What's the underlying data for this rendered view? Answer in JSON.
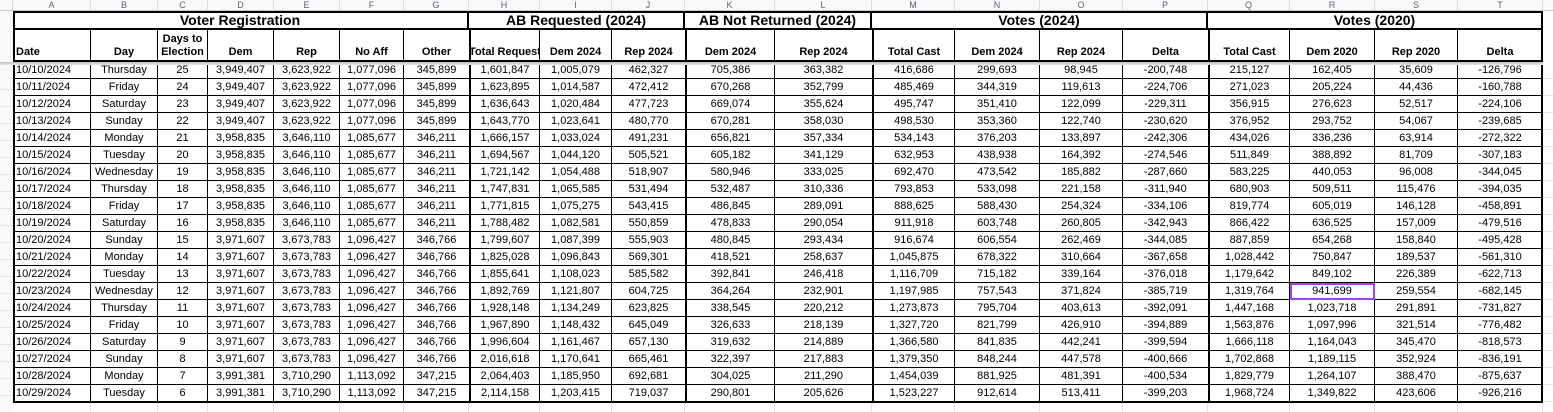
{
  "sheet": {
    "column_letters": [
      "A",
      "B",
      "C",
      "D",
      "E",
      "F",
      "G",
      "H",
      "I",
      "J",
      "K",
      "L",
      "M",
      "N",
      "O",
      "P",
      "Q",
      "R",
      "S",
      "T"
    ],
    "sections": [
      {
        "label": "Voter Registration",
        "cols": 7
      },
      {
        "label": "AB Requested (2024)",
        "cols": 3
      },
      {
        "label": "AB Not Returned (2024)",
        "cols": 2
      },
      {
        "label": "Votes (2024)",
        "cols": 4
      },
      {
        "label": "Votes (2020)",
        "cols": 4
      }
    ],
    "columns": [
      "Date",
      "Day",
      "Days to Election",
      "Dem",
      "Rep",
      "No Aff",
      "Other",
      "Total Request",
      "Dem 2024",
      "Rep 2024",
      "Dem 2024",
      "Rep 2024",
      "Total Cast",
      "Dem 2024",
      "Rep 2024",
      "Delta",
      "Total Cast",
      "Dem 2020",
      "Rep 2020",
      "Delta"
    ],
    "rows": [
      [
        "10/10/2024",
        "Thursday",
        "25",
        "3,949,407",
        "3,623,922",
        "1,077,096",
        "345,899",
        "1,601,847",
        "1,005,079",
        "462,327",
        "705,386",
        "363,382",
        "416,686",
        "299,693",
        "98,945",
        "-200,748",
        "215,127",
        "162,405",
        "35,609",
        "-126,796"
      ],
      [
        "10/11/2024",
        "Friday",
        "24",
        "3,949,407",
        "3,623,922",
        "1,077,096",
        "345,899",
        "1,623,895",
        "1,014,587",
        "472,412",
        "670,268",
        "352,799",
        "485,469",
        "344,319",
        "119,613",
        "-224,706",
        "271,023",
        "205,224",
        "44,436",
        "-160,788"
      ],
      [
        "10/12/2024",
        "Saturday",
        "23",
        "3,949,407",
        "3,623,922",
        "1,077,096",
        "345,899",
        "1,636,643",
        "1,020,484",
        "477,723",
        "669,074",
        "355,624",
        "495,747",
        "351,410",
        "122,099",
        "-229,311",
        "356,915",
        "276,623",
        "52,517",
        "-224,106"
      ],
      [
        "10/13/2024",
        "Sunday",
        "22",
        "3,949,407",
        "3,623,922",
        "1,077,096",
        "345,899",
        "1,643,770",
        "1,023,641",
        "480,770",
        "670,281",
        "358,030",
        "498,530",
        "353,360",
        "122,740",
        "-230,620",
        "376,952",
        "293,752",
        "54,067",
        "-239,685"
      ],
      [
        "10/14/2024",
        "Monday",
        "21",
        "3,958,835",
        "3,646,110",
        "1,085,677",
        "346,211",
        "1,666,157",
        "1,033,024",
        "491,231",
        "656,821",
        "357,334",
        "534,143",
        "376,203",
        "133,897",
        "-242,306",
        "434,026",
        "336,236",
        "63,914",
        "-272,322"
      ],
      [
        "10/15/2024",
        "Tuesday",
        "20",
        "3,958,835",
        "3,646,110",
        "1,085,677",
        "346,211",
        "1,694,567",
        "1,044,120",
        "505,521",
        "605,182",
        "341,129",
        "632,953",
        "438,938",
        "164,392",
        "-274,546",
        "511,849",
        "388,892",
        "81,709",
        "-307,183"
      ],
      [
        "10/16/2024",
        "Wednesday",
        "19",
        "3,958,835",
        "3,646,110",
        "1,085,677",
        "346,211",
        "1,721,142",
        "1,054,488",
        "518,907",
        "580,946",
        "333,025",
        "692,470",
        "473,542",
        "185,882",
        "-287,660",
        "583,225",
        "440,053",
        "96,008",
        "-344,045"
      ],
      [
        "10/17/2024",
        "Thursday",
        "18",
        "3,958,835",
        "3,646,110",
        "1,085,677",
        "346,211",
        "1,747,831",
        "1,065,585",
        "531,494",
        "532,487",
        "310,336",
        "793,853",
        "533,098",
        "221,158",
        "-311,940",
        "680,903",
        "509,511",
        "115,476",
        "-394,035"
      ],
      [
        "10/18/2024",
        "Friday",
        "17",
        "3,958,835",
        "3,646,110",
        "1,085,677",
        "346,211",
        "1,771,815",
        "1,075,275",
        "543,415",
        "486,845",
        "289,091",
        "888,625",
        "588,430",
        "254,324",
        "-334,106",
        "819,774",
        "605,019",
        "146,128",
        "-458,891"
      ],
      [
        "10/19/2024",
        "Saturday",
        "16",
        "3,958,835",
        "3,646,110",
        "1,085,677",
        "346,211",
        "1,788,482",
        "1,082,581",
        "550,859",
        "478,833",
        "290,054",
        "911,918",
        "603,748",
        "260,805",
        "-342,943",
        "866,422",
        "636,525",
        "157,009",
        "-479,516"
      ],
      [
        "10/20/2024",
        "Sunday",
        "15",
        "3,971,607",
        "3,673,783",
        "1,096,427",
        "346,766",
        "1,799,607",
        "1,087,399",
        "555,903",
        "480,845",
        "293,434",
        "916,674",
        "606,554",
        "262,469",
        "-344,085",
        "887,859",
        "654,268",
        "158,840",
        "-495,428"
      ],
      [
        "10/21/2024",
        "Monday",
        "14",
        "3,971,607",
        "3,673,783",
        "1,096,427",
        "346,766",
        "1,825,028",
        "1,096,843",
        "569,301",
        "418,521",
        "258,637",
        "1,045,875",
        "678,322",
        "310,664",
        "-367,658",
        "1,028,442",
        "750,847",
        "189,537",
        "-561,310"
      ],
      [
        "10/22/2024",
        "Tuesday",
        "13",
        "3,971,607",
        "3,673,783",
        "1,096,427",
        "346,766",
        "1,855,641",
        "1,108,023",
        "585,582",
        "392,841",
        "246,418",
        "1,116,709",
        "715,182",
        "339,164",
        "-376,018",
        "1,179,642",
        "849,102",
        "226,389",
        "-622,713"
      ],
      [
        "10/23/2024",
        "Wednesday",
        "12",
        "3,971,607",
        "3,673,783",
        "1,096,427",
        "346,766",
        "1,892,769",
        "1,121,807",
        "604,725",
        "364,264",
        "232,901",
        "1,197,985",
        "757,543",
        "371,824",
        "-385,719",
        "1,319,764",
        "941,699",
        "259,554",
        "-682,145"
      ],
      [
        "10/24/2024",
        "Thursday",
        "11",
        "3,971,607",
        "3,673,783",
        "1,096,427",
        "346,766",
        "1,928,148",
        "1,134,249",
        "623,825",
        "338,545",
        "220,212",
        "1,273,873",
        "795,704",
        "403,613",
        "-392,091",
        "1,447,168",
        "1,023,718",
        "291,891",
        "-731,827"
      ],
      [
        "10/25/2024",
        "Friday",
        "10",
        "3,971,607",
        "3,673,783",
        "1,096,427",
        "346,766",
        "1,967,890",
        "1,148,432",
        "645,049",
        "326,633",
        "218,139",
        "1,327,720",
        "821,799",
        "426,910",
        "-394,889",
        "1,563,876",
        "1,097,996",
        "321,514",
        "-776,482"
      ],
      [
        "10/26/2024",
        "Saturday",
        "9",
        "3,971,607",
        "3,673,783",
        "1,096,427",
        "346,766",
        "1,996,604",
        "1,161,467",
        "657,130",
        "319,632",
        "214,889",
        "1,366,580",
        "841,835",
        "442,241",
        "-399,594",
        "1,666,118",
        "1,164,043",
        "345,470",
        "-818,573"
      ],
      [
        "10/27/2024",
        "Sunday",
        "8",
        "3,971,607",
        "3,673,783",
        "1,096,427",
        "346,766",
        "2,016,618",
        "1,170,641",
        "665,461",
        "322,397",
        "217,883",
        "1,379,350",
        "848,244",
        "447,578",
        "-400,666",
        "1,702,868",
        "1,189,115",
        "352,924",
        "-836,191"
      ],
      [
        "10/28/2024",
        "Monday",
        "7",
        "3,991,381",
        "3,710,290",
        "1,113,092",
        "347,215",
        "2,064,403",
        "1,185,950",
        "692,681",
        "304,025",
        "211,290",
        "1,454,039",
        "881,925",
        "481,391",
        "-400,534",
        "1,829,779",
        "1,264,107",
        "388,470",
        "-875,637"
      ],
      [
        "10/29/2024",
        "Tuesday",
        "6",
        "3,991,381",
        "3,710,290",
        "1,113,092",
        "347,215",
        "2,114,158",
        "1,203,415",
        "719,037",
        "290,801",
        "205,626",
        "1,523,227",
        "912,614",
        "513,411",
        "-399,203",
        "1,968,724",
        "1,349,822",
        "423,606",
        "-926,216"
      ]
    ],
    "selection": {
      "row": 13,
      "col": 17,
      "value": "941,699",
      "border_color": "#a142f4"
    }
  }
}
